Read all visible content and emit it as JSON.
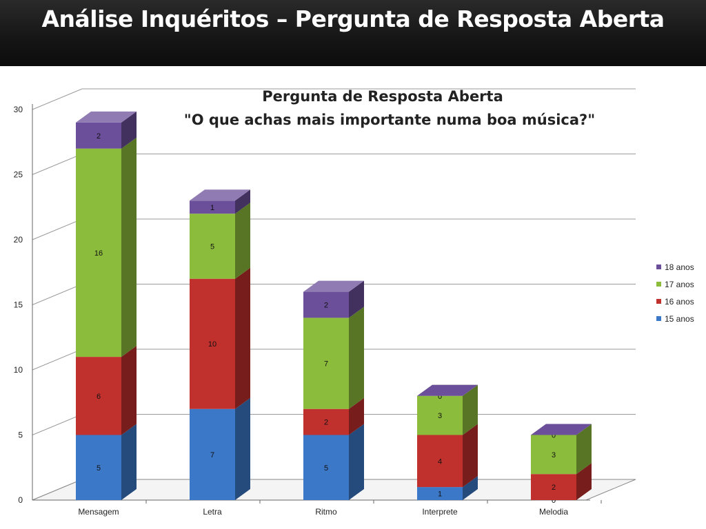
{
  "slide": {
    "title": "Análise Inquéritos – Pergunta de Resposta Aberta"
  },
  "chart_data": {
    "type": "bar",
    "stacked": true,
    "three_d": true,
    "title": "Pergunta de Resposta Aberta",
    "subtitle": "\"O que achas mais importante numa boa música?\"",
    "categories": [
      "Mensagem",
      "Letra",
      "Ritmo",
      "Interprete",
      "Melodia"
    ],
    "series": [
      {
        "name": "15 anos",
        "values": [
          5,
          7,
          5,
          1,
          0
        ],
        "color": "#3c78c8"
      },
      {
        "name": "16 anos",
        "values": [
          6,
          10,
          2,
          4,
          2
        ],
        "color": "#c0312e"
      },
      {
        "name": "17 anos",
        "values": [
          16,
          5,
          7,
          3,
          3
        ],
        "color": "#8cbc3c"
      },
      {
        "name": "18 anos",
        "values": [
          2,
          1,
          2,
          0,
          0
        ],
        "color": "#6b4f9a"
      }
    ],
    "y_ticks": [
      "0",
      "5",
      "10",
      "15",
      "20",
      "25",
      "30"
    ],
    "ylim": [
      0,
      30
    ],
    "grid": true,
    "legend_position": "right"
  }
}
